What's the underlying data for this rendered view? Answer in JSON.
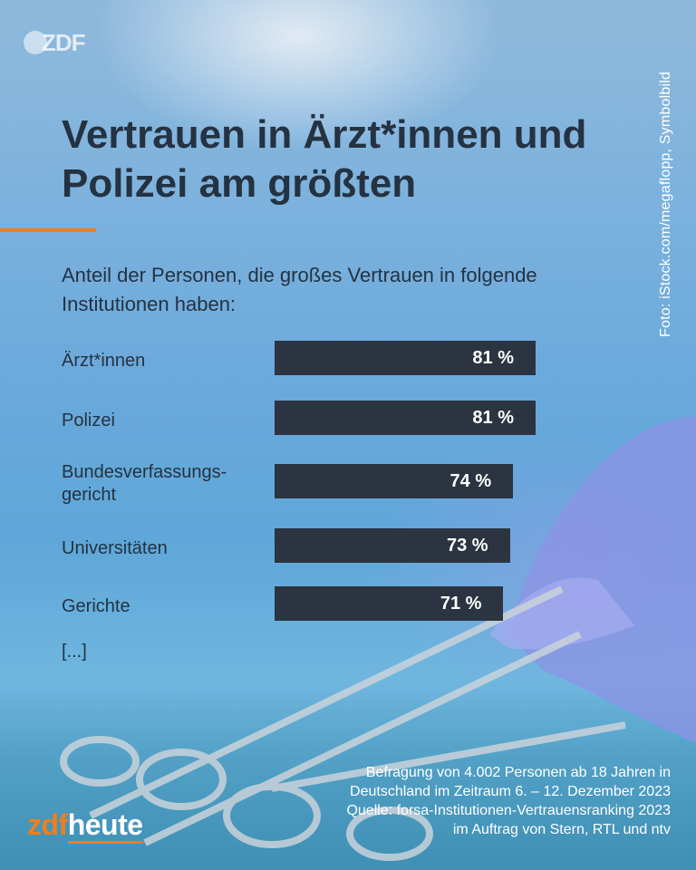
{
  "header": {
    "logo": "ZDF",
    "title": "Vertrauen in Ärzt*innen und Polizei am größten",
    "photo_credit": "Foto: iStock.com/megaflopp, Symbolbild"
  },
  "chart_data": {
    "type": "bar",
    "orientation": "horizontal",
    "title": "Vertrauen in Ärzt*innen und Polizei am größten",
    "subtitle": "Anteil der Personen, die großes Vertrauen in folgende Institutionen haben:",
    "categories": [
      "Ärzt*innen",
      "Polizei",
      "Bundesverfassungs-gericht",
      "Universitäten",
      "Gerichte"
    ],
    "values": [
      81,
      81,
      74,
      73,
      71
    ],
    "value_labels": [
      "81 %",
      "81 %",
      "74 %",
      "73 %",
      "71 %"
    ],
    "unit": "%",
    "xlim": [
      0,
      100
    ],
    "bar_color": "#2b3440",
    "truncation_note": "[...]"
  },
  "footer": {
    "source_lines": [
      "Befragung von 4.002 Personen ab 18 Jahren in",
      "Deutschland im Zeitraum 6. – 12. Dezember 2023",
      "Quelle: forsa-Institutionen-Vertrauensranking 2023",
      "im Auftrag von Stern, RTL und ntv"
    ],
    "brand_prefix": "zdf",
    "brand_suffix": "heute",
    "accent_color": "#f07d1e"
  }
}
